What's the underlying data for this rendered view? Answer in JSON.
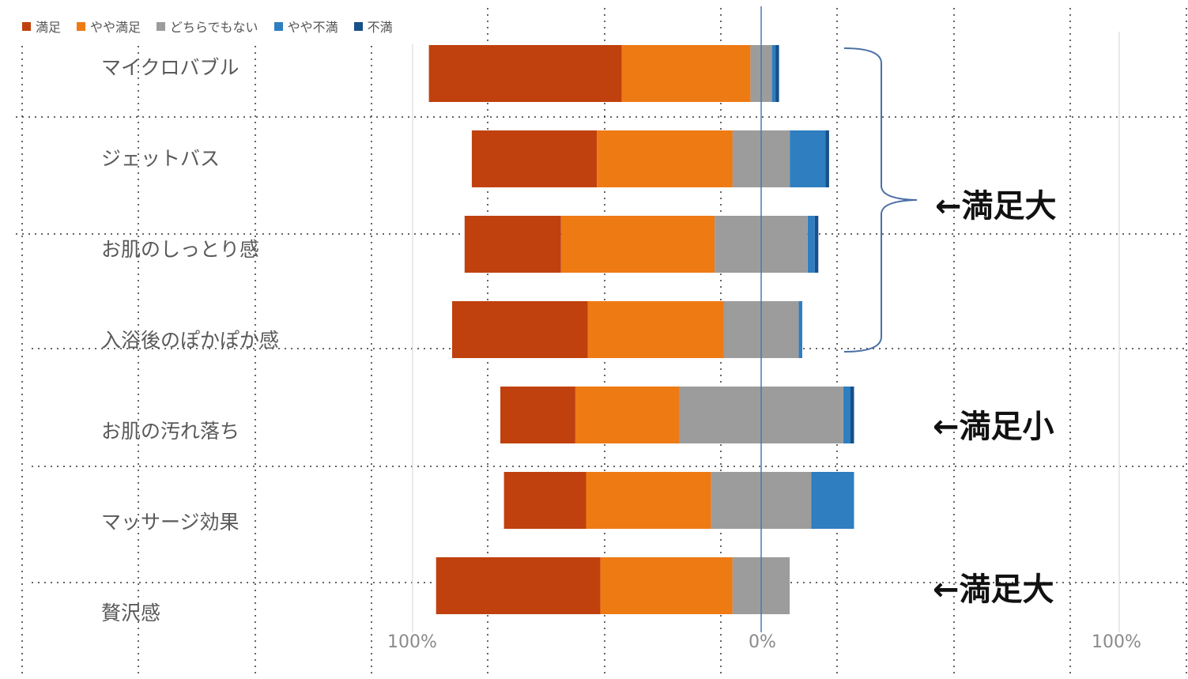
{
  "chart_data": {
    "type": "bar",
    "orientation": "horizontal",
    "stacked": "diverging",
    "categories": [
      "マイクロバブル",
      "ジェットバス",
      "お肌のしっとり感",
      "入浴後のぽかぽか感",
      "お肌の汚れ落ち",
      "マッサージ効果",
      "贅沢感"
    ],
    "series": [
      {
        "name": "満足",
        "color": "#c0410d",
        "values": [
          54,
          35,
          27,
          38,
          21,
          23,
          46
        ]
      },
      {
        "name": "やや満足",
        "color": "#ee7a14",
        "values": [
          36,
          38,
          43,
          38,
          29,
          35,
          37
        ]
      },
      {
        "name": "どちらでもない",
        "color": "#9c9c9c",
        "values": [
          6,
          16,
          26,
          21,
          46,
          28,
          16
        ]
      },
      {
        "name": "やや不満",
        "color": "#2e7ec0",
        "values": [
          1,
          10,
          2,
          1,
          2,
          12,
          0
        ]
      },
      {
        "name": "不満",
        "color": "#17508a",
        "values": [
          1,
          1,
          1,
          0,
          1,
          0,
          0
        ]
      }
    ],
    "xticks": [
      "100%",
      "0%",
      "100%"
    ],
    "xlim": [
      -100,
      100
    ],
    "legend_position": "top-left",
    "grid": true
  },
  "annotations": [
    "←満足大",
    "←満足小",
    "←満足大"
  ]
}
